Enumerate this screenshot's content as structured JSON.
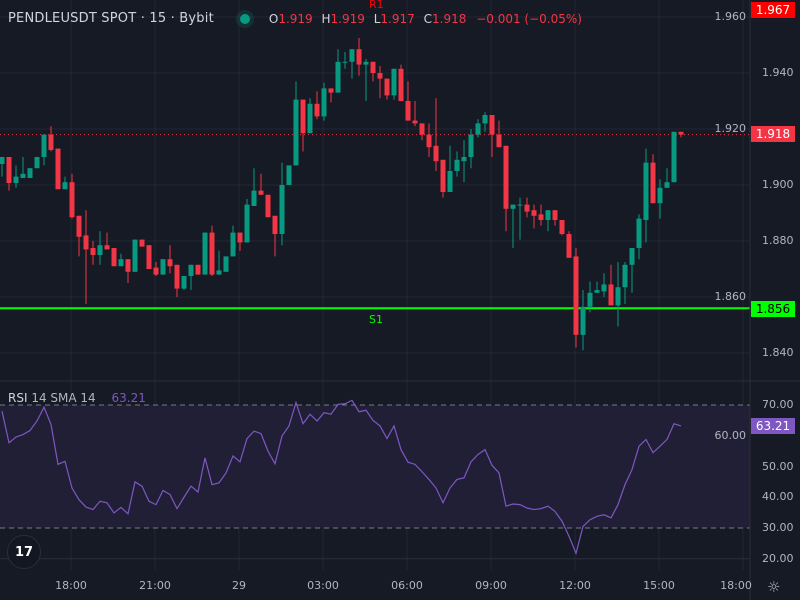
{
  "header": {
    "symbol": "PENDLEUSDT SPOT · 15 · Bybit",
    "status_color": "#089981",
    "ohlc": {
      "o_label": "O",
      "o": "1.919",
      "h_label": "H",
      "h": "1.919",
      "l_label": "L",
      "l": "1.917",
      "c_label": "C",
      "c": "1.918",
      "change": "−0.001 (−0.05%)"
    }
  },
  "price_axis": {
    "ticks": [
      "1.960",
      "1.940",
      "1.920",
      "1.900",
      "1.880",
      "1.860",
      "1.840"
    ],
    "tick_values": [
      1.96,
      1.94,
      1.92,
      1.9,
      1.88,
      1.86,
      1.84
    ],
    "last_price_label": "1.918",
    "last_price": 1.918,
    "r1_label": "1.967",
    "r1_price": 1.967,
    "s1_label": "1.856",
    "s1_price": 1.856
  },
  "levels": {
    "r1_name": "R1",
    "s1_name": "S1",
    "r1_color": "#ff0000",
    "s1_color": "#00ff00"
  },
  "rsi": {
    "name": "RSI",
    "params": "14 SMA 14",
    "value": "63.21",
    "ticks": [
      "70.00",
      "60.00",
      "50.00",
      "40.00",
      "30.00",
      "20.00"
    ],
    "tick_values": [
      70,
      60,
      50,
      40,
      30,
      20
    ],
    "upper_band": 70,
    "lower_band": 30,
    "color": "#7e57c2",
    "values": [
      68.0,
      57.7,
      59.6,
      60.4,
      61.7,
      64.8,
      69.3,
      63.7,
      50.7,
      51.7,
      43.0,
      39.2,
      36.8,
      36.0,
      38.7,
      38.2,
      34.9,
      36.7,
      34.6,
      45.0,
      43.6,
      38.7,
      37.6,
      42.2,
      40.9,
      36.3,
      40.0,
      43.6,
      41.7,
      52.8,
      44.1,
      44.7,
      47.9,
      53.4,
      51.5,
      59.1,
      61.5,
      60.7,
      55.0,
      50.9,
      59.9,
      63.2,
      70.8,
      63.9,
      67.0,
      64.8,
      67.5,
      67.0,
      70.2,
      70.4,
      71.5,
      67.8,
      68.3,
      65.0,
      63.2,
      59.1,
      63.2,
      55.5,
      51.4,
      50.7,
      48.3,
      45.8,
      43.0,
      38.2,
      43.0,
      45.8,
      46.3,
      51.5,
      53.9,
      55.5,
      50.4,
      47.9,
      37.1,
      37.8,
      37.6,
      36.5,
      36.0,
      36.3,
      37.1,
      35.4,
      32.2,
      27.3,
      21.8,
      30.5,
      32.7,
      33.8,
      34.3,
      33.3,
      37.6,
      44.1,
      49.0,
      56.6,
      58.8,
      54.5,
      56.6,
      58.8,
      63.9,
      63.2
    ]
  },
  "time_axis": {
    "labels": [
      "18:00",
      "21:00",
      "29",
      "03:00",
      "06:00",
      "09:00",
      "12:00",
      "15:00",
      "18:00"
    ]
  },
  "colors": {
    "up": "#089981",
    "down": "#f23645",
    "background": "#161a25"
  },
  "chart_data": {
    "type": "candlestick",
    "interval": "15",
    "candles": [
      [
        1.9075,
        1.91,
        1.903,
        1.91
      ],
      [
        1.91,
        1.91,
        1.898,
        1.9007
      ],
      [
        1.9007,
        1.907,
        1.899,
        1.903
      ],
      [
        1.9025,
        1.91,
        1.9025,
        1.904
      ],
      [
        1.9025,
        1.906,
        1.9025,
        1.906
      ],
      [
        1.906,
        1.91,
        1.906,
        1.91
      ],
      [
        1.91,
        1.918,
        1.907,
        1.918
      ],
      [
        1.918,
        1.921,
        1.912,
        1.9125
      ],
      [
        1.913,
        1.913,
        1.8985,
        1.8985
      ],
      [
        1.8985,
        1.903,
        1.8985,
        1.901
      ],
      [
        1.901,
        1.904,
        1.888,
        1.8885
      ],
      [
        1.889,
        1.889,
        1.8745,
        1.8815
      ],
      [
        1.882,
        1.891,
        1.8575,
        1.877
      ],
      [
        1.8775,
        1.88,
        1.8715,
        1.875
      ],
      [
        1.875,
        1.8835,
        1.8715,
        1.8785
      ],
      [
        1.8785,
        1.883,
        1.877,
        1.877
      ],
      [
        1.8775,
        1.8775,
        1.871,
        1.871
      ],
      [
        1.871,
        1.8755,
        1.871,
        1.8735
      ],
      [
        1.8735,
        1.8735,
        1.865,
        1.869
      ],
      [
        1.869,
        1.8805,
        1.869,
        1.8805
      ],
      [
        1.8805,
        1.8805,
        1.878,
        1.878
      ],
      [
        1.8785,
        1.8785,
        1.87,
        1.87
      ],
      [
        1.8705,
        1.8725,
        1.8675,
        1.868
      ],
      [
        1.868,
        1.8735,
        1.868,
        1.8735
      ],
      [
        1.8735,
        1.8785,
        1.8685,
        1.871
      ],
      [
        1.8715,
        1.8715,
        1.86,
        1.863
      ],
      [
        1.863,
        1.8675,
        1.8625,
        1.8675
      ],
      [
        1.8675,
        1.8715,
        1.8625,
        1.8715
      ],
      [
        1.8715,
        1.8715,
        1.868,
        1.868
      ],
      [
        1.868,
        1.883,
        1.868,
        1.883
      ],
      [
        1.883,
        1.8855,
        1.8675,
        1.868
      ],
      [
        1.868,
        1.8765,
        1.868,
        1.8695
      ],
      [
        1.869,
        1.8745,
        1.869,
        1.8745
      ],
      [
        1.8745,
        1.8855,
        1.8745,
        1.883
      ],
      [
        1.883,
        1.883,
        1.8765,
        1.8795
      ],
      [
        1.8795,
        1.895,
        1.8795,
        1.893
      ],
      [
        1.8925,
        1.906,
        1.8925,
        1.898
      ],
      [
        1.898,
        1.904,
        1.8965,
        1.8965
      ],
      [
        1.8965,
        1.8965,
        1.8885,
        1.8885
      ],
      [
        1.889,
        1.889,
        1.8745,
        1.8825
      ],
      [
        1.8825,
        1.908,
        1.8785,
        1.9
      ],
      [
        1.9,
        1.907,
        1.9,
        1.907
      ],
      [
        1.907,
        1.937,
        1.907,
        1.9305
      ],
      [
        1.9305,
        1.9305,
        1.912,
        1.9185
      ],
      [
        1.9185,
        1.931,
        1.9185,
        1.929
      ],
      [
        1.929,
        1.9335,
        1.9235,
        1.9245
      ],
      [
        1.9245,
        1.9365,
        1.923,
        1.9345
      ],
      [
        1.9345,
        1.9345,
        1.9295,
        1.933
      ],
      [
        1.933,
        1.9485,
        1.933,
        1.944
      ],
      [
        1.944,
        1.9475,
        1.9415,
        1.944
      ],
      [
        1.944,
        1.9485,
        1.938,
        1.9485
      ],
      [
        1.9485,
        1.9525,
        1.939,
        1.943
      ],
      [
        1.943,
        1.945,
        1.93,
        1.944
      ],
      [
        1.944,
        1.944,
        1.937,
        1.94
      ],
      [
        1.94,
        1.9425,
        1.931,
        1.938
      ],
      [
        1.938,
        1.938,
        1.9305,
        1.932
      ],
      [
        1.932,
        1.9415,
        1.9305,
        1.9415
      ],
      [
        1.9415,
        1.943,
        1.93,
        1.93
      ],
      [
        1.93,
        1.937,
        1.923,
        1.923
      ],
      [
        1.923,
        1.93,
        1.921,
        1.922
      ],
      [
        1.922,
        1.922,
        1.916,
        1.918
      ],
      [
        1.918,
        1.922,
        1.91,
        1.9135
      ],
      [
        1.914,
        1.931,
        1.905,
        1.9085
      ],
      [
        1.909,
        1.909,
        1.8955,
        1.8975
      ],
      [
        1.8975,
        1.914,
        1.8975,
        1.905
      ],
      [
        1.905,
        1.912,
        1.903,
        1.909
      ],
      [
        1.9085,
        1.916,
        1.901,
        1.91
      ],
      [
        1.91,
        1.92,
        1.906,
        1.918
      ],
      [
        1.918,
        1.9235,
        1.917,
        1.922
      ],
      [
        1.922,
        1.926,
        1.919,
        1.925
      ],
      [
        1.925,
        1.925,
        1.91,
        1.918
      ],
      [
        1.918,
        1.923,
        1.9135,
        1.9135
      ],
      [
        1.914,
        1.914,
        1.8835,
        1.8915
      ],
      [
        1.8915,
        1.893,
        1.8775,
        1.893
      ],
      [
        1.893,
        1.8955,
        1.8805,
        1.893
      ],
      [
        1.893,
        1.8955,
        1.8885,
        1.8905
      ],
      [
        1.891,
        1.893,
        1.8845,
        1.889
      ],
      [
        1.8895,
        1.893,
        1.8855,
        1.8875
      ],
      [
        1.8875,
        1.891,
        1.8835,
        1.891
      ],
      [
        1.891,
        1.891,
        1.8855,
        1.8875
      ],
      [
        1.8875,
        1.8875,
        1.882,
        1.8825
      ],
      [
        1.8825,
        1.8835,
        1.874,
        1.874
      ],
      [
        1.8745,
        1.8775,
        1.842,
        1.8465
      ],
      [
        1.8465,
        1.8625,
        1.841,
        1.8565
      ],
      [
        1.8565,
        1.8655,
        1.8545,
        1.8615
      ],
      [
        1.8615,
        1.8655,
        1.8615,
        1.8625
      ],
      [
        1.862,
        1.8685,
        1.86,
        1.8645
      ],
      [
        1.8645,
        1.8715,
        1.857,
        1.857
      ],
      [
        1.857,
        1.8725,
        1.8495,
        1.8635
      ],
      [
        1.8635,
        1.8725,
        1.8575,
        1.8715
      ],
      [
        1.8715,
        1.8775,
        1.8615,
        1.8775
      ],
      [
        1.8775,
        1.8895,
        1.8735,
        1.888
      ],
      [
        1.8875,
        1.913,
        1.8795,
        1.908
      ],
      [
        1.908,
        1.911,
        1.8935,
        1.8935
      ],
      [
        1.8935,
        1.902,
        1.888,
        1.899
      ],
      [
        1.899,
        1.906,
        1.899,
        1.901
      ],
      [
        1.901,
        1.919,
        1.901,
        1.919
      ],
      [
        1.919,
        1.919,
        1.917,
        1.918
      ]
    ],
    "candle_format": [
      "open",
      "high",
      "low",
      "close"
    ],
    "ylim": [
      1.836,
      1.963
    ]
  }
}
